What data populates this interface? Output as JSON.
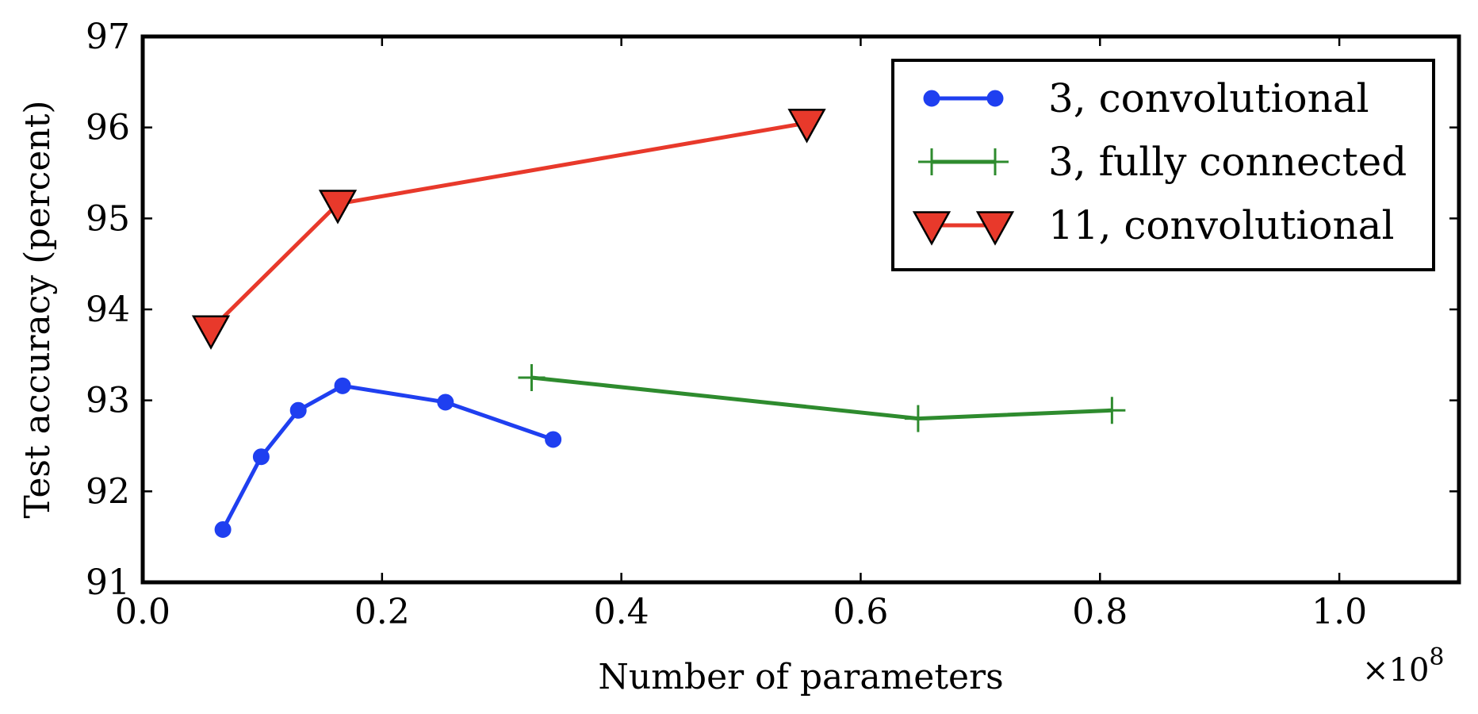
{
  "chart_data": {
    "type": "line",
    "xlabel": "Number of parameters",
    "ylabel": "Test accuracy (percent)",
    "x_exponent_label": "×10",
    "x_exponent_power": "8",
    "xlim": [
      0.0,
      1.1
    ],
    "ylim": [
      91,
      97
    ],
    "x_ticks": [
      0.0,
      0.2,
      0.4,
      0.6,
      0.8,
      1.0
    ],
    "x_tick_labels": [
      "0.0",
      "0.2",
      "0.4",
      "0.6",
      "0.8",
      "1.0"
    ],
    "y_ticks": [
      91,
      92,
      93,
      94,
      95,
      96,
      97
    ],
    "y_tick_labels": [
      "91",
      "92",
      "93",
      "94",
      "95",
      "96",
      "97"
    ],
    "grid": false,
    "legend_position": "top-right",
    "series": [
      {
        "name": "3, convolutional",
        "color": "#1f3ff0",
        "marker": "circle",
        "x": [
          0.067,
          0.099,
          0.13,
          0.167,
          0.253,
          0.343
        ],
        "y": [
          91.58,
          92.38,
          92.89,
          93.16,
          92.98,
          92.57
        ]
      },
      {
        "name": "3, fully connected",
        "color": "#2e8b2e",
        "marker": "plus",
        "x": [
          0.325,
          0.648,
          0.81
        ],
        "y": [
          93.25,
          92.8,
          92.89
        ]
      },
      {
        "name": "11, convolutional",
        "color": "#e8392b",
        "marker": "triangle-down",
        "x": [
          0.057,
          0.163,
          0.555
        ],
        "y": [
          93.78,
          95.16,
          96.05
        ]
      }
    ]
  }
}
